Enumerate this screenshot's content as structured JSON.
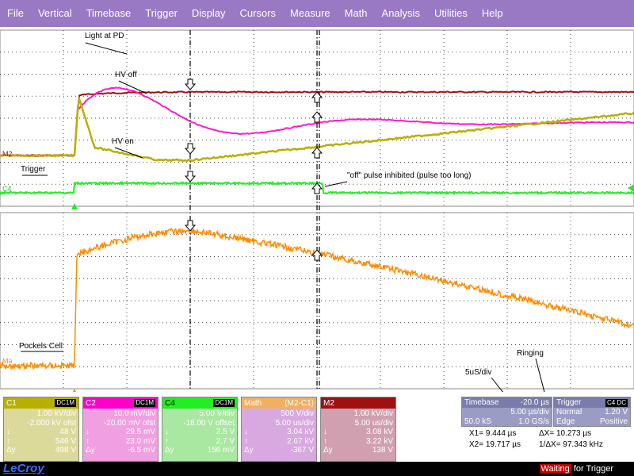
{
  "menu": [
    "File",
    "Vertical",
    "Timebase",
    "Trigger",
    "Display",
    "Cursors",
    "Measure",
    "Math",
    "Analysis",
    "Utilities",
    "Help"
  ],
  "annotations": {
    "light_at_pd": "Light at PD",
    "hv_off": "HV off",
    "hv_on": "HV on",
    "trigger": "Trigger",
    "off_pulse": "\"off\" pulse inhibited (pulse too long)",
    "pockels": "Pockels Cell",
    "ringing": "Ringing",
    "fivediv": "5uS/div"
  },
  "markers": {
    "m2": "M2",
    "c4": "C4",
    "ma": "Ma"
  },
  "colors": {
    "c1": "#b8b000",
    "c2": "#ff00c8",
    "c4": "#22ee22",
    "math": "#ff8c00",
    "m2": "#a01010",
    "menu": "#9a79c4",
    "panel": "#9a9cc4"
  },
  "channels": [
    {
      "id": "C1",
      "coupling": "DC1M",
      "vdiv": "1.00 kV/div",
      "offset": "-2.000 kV ofst",
      "down": "48 V",
      "up": "546 V",
      "dy": "498 V"
    },
    {
      "id": "C2",
      "coupling": "DC1M",
      "vdiv": "10.0 mV/div",
      "offset": "-20.00 mV ofst",
      "down": "29.5 mV",
      "up": "23.0 mV",
      "dy": "-6.5 mV"
    },
    {
      "id": "C4",
      "coupling": "DC1M",
      "vdiv": "5.00 V/div",
      "offset": "-18.00 V offset",
      "down": "2.5 V",
      "up": "2.7 V",
      "dy": "156 mV"
    },
    {
      "id": "Math",
      "coupling": "(M2-C1)",
      "vdiv": "500 V/div",
      "offset": "5.00 us/div",
      "down": "3.04 kV",
      "up": "2.67 kV",
      "dy": "-367 V"
    },
    {
      "id": "M2",
      "coupling": "",
      "vdiv": "1.00 kV/div",
      "offset": "5.00 us/div",
      "down": "3.08 kV",
      "up": "3.22 kV",
      "dy": "138 V"
    }
  ],
  "timebase": {
    "label": "Timebase",
    "delay": "-20.0 µs",
    "tdiv": "5.00 µs/div",
    "samples": "50.0 kS",
    "rate": "1.0 GS/s"
  },
  "trigger": {
    "label": "Trigger",
    "badge": "C4 DC",
    "mode": "Normal",
    "level": "1.20 V",
    "type": "Edge",
    "slope": "Positive"
  },
  "cursors": {
    "x1": "X1=  9.444 µs",
    "dx": "ΔX=  10.273 µs",
    "x2": "X2= 19.717 µs",
    "inv": "1/ΔX= 97.343 kHz"
  },
  "footer": {
    "logo": "LeCroy",
    "waiting": "Waiting",
    "for_trigger": "for Trigger"
  },
  "chart_data": {
    "type": "line",
    "x_divisions": 10,
    "upper_grid": {
      "y_divisions": 8
    },
    "lower_grid": {
      "y_divisions": 8
    },
    "series": [
      {
        "name": "Light at PD",
        "channel": "C2",
        "description_values": [
          0,
          1.7,
          4.3,
          2.9,
          1.8,
          2.2,
          0.8,
          1.2,
          0.9,
          1.1,
          1.0
        ]
      },
      {
        "name": "HV off",
        "channel": "M2"
      },
      {
        "name": "HV on",
        "channel": "C1"
      },
      {
        "name": "Trigger",
        "channel": "C4"
      },
      {
        "name": "Pockels Cell",
        "channel": "Math"
      }
    ]
  }
}
